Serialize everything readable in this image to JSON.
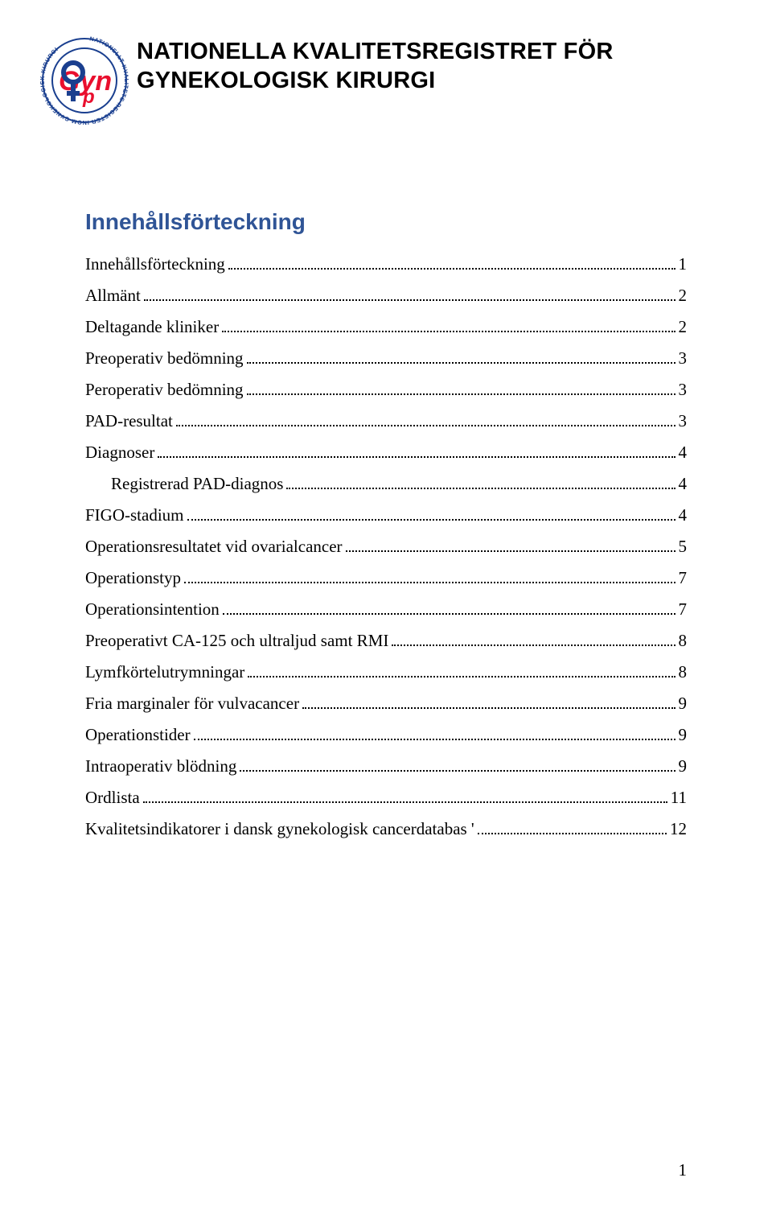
{
  "header": {
    "title_line1": "NATIONELLA KVALITETSREGISTRET FÖR",
    "title_line2": "GYNEKOLOGISK KIRURGI",
    "logo": {
      "outer_text": "NATIONELLT KVALITETS REGISTER  INOM GYNEKOLOGISK KIRURGI",
      "brand": "GynOp",
      "ring_color": "#1a3f8f",
      "text_color": "#e90f2e",
      "symbol_color": "#1a3f8f"
    }
  },
  "toc": {
    "heading": "Innehållsförteckning",
    "heading_color": "#2f5496",
    "entries": [
      {
        "label": "Innehållsförteckning",
        "page": "1",
        "indent": 0
      },
      {
        "label": "Allmänt",
        "page": "2",
        "indent": 0
      },
      {
        "label": "Deltagande kliniker",
        "page": "2",
        "indent": 0
      },
      {
        "label": "Preoperativ bedömning",
        "page": "3",
        "indent": 0
      },
      {
        "label": "Peroperativ bedömning",
        "page": "3",
        "indent": 0
      },
      {
        "label": "PAD-resultat",
        "page": "3",
        "indent": 0
      },
      {
        "label": "Diagnoser",
        "page": "4",
        "indent": 0
      },
      {
        "label": "Registrerad PAD-diagnos",
        "page": "4",
        "indent": 1
      },
      {
        "label": "FIGO-stadium",
        "page": "4",
        "indent": 0
      },
      {
        "label": "Operationsresultatet vid ovarialcancer",
        "page": "5",
        "indent": 0
      },
      {
        "label": "Operationstyp",
        "page": "7",
        "indent": 0
      },
      {
        "label": "Operationsintention",
        "page": "7",
        "indent": 0
      },
      {
        "label": "Preoperativt CA-125 och ultraljud samt RMI",
        "page": "8",
        "indent": 0
      },
      {
        "label": "Lymfkörtelutrymningar",
        "page": "8",
        "indent": 0
      },
      {
        "label": "Fria marginaler för vulvacancer",
        "page": "9",
        "indent": 0
      },
      {
        "label": "Operationstider",
        "page": "9",
        "indent": 0
      },
      {
        "label": "Intraoperativ blödning",
        "page": "9",
        "indent": 0
      },
      {
        "label": "Ordlista",
        "page": "11",
        "indent": 0
      },
      {
        "label": "Kvalitetsindikatorer i dansk gynekologisk cancerdatabas '",
        "page": "12",
        "indent": 0
      }
    ]
  },
  "footer": {
    "page_number": "1"
  }
}
